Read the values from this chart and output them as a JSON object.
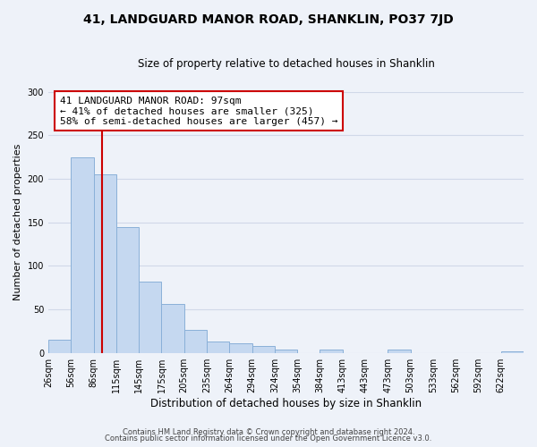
{
  "title": "41, LANDGUARD MANOR ROAD, SHANKLIN, PO37 7JD",
  "subtitle": "Size of property relative to detached houses in Shanklin",
  "xlabel": "Distribution of detached houses by size in Shanklin",
  "ylabel": "Number of detached properties",
  "bar_labels": [
    "26sqm",
    "56sqm",
    "86sqm",
    "115sqm",
    "145sqm",
    "175sqm",
    "205sqm",
    "235sqm",
    "264sqm",
    "294sqm",
    "324sqm",
    "354sqm",
    "384sqm",
    "413sqm",
    "443sqm",
    "473sqm",
    "503sqm",
    "533sqm",
    "562sqm",
    "592sqm",
    "622sqm"
  ],
  "bar_heights": [
    15,
    225,
    205,
    145,
    82,
    56,
    26,
    13,
    11,
    8,
    4,
    0,
    4,
    0,
    0,
    4,
    0,
    0,
    0,
    0,
    2
  ],
  "bar_color": "#c5d8f0",
  "bar_edge_color": "#8ab0d8",
  "property_line_x": 2,
  "ylim": [
    0,
    300
  ],
  "yticks": [
    0,
    50,
    100,
    150,
    200,
    250,
    300
  ],
  "annotation_title": "41 LANDGUARD MANOR ROAD: 97sqm",
  "annotation_line1": "← 41% of detached houses are smaller (325)",
  "annotation_line2": "58% of semi-detached houses are larger (457) →",
  "annotation_box_color": "#ffffff",
  "annotation_box_edge": "#cc0000",
  "vline_color": "#cc0000",
  "footer1": "Contains HM Land Registry data © Crown copyright and database right 2024.",
  "footer2": "Contains public sector information licensed under the Open Government Licence v3.0.",
  "background_color": "#eef2f9",
  "grid_color": "#d0d8e8",
  "title_fontsize": 10,
  "subtitle_fontsize": 8.5,
  "ylabel_fontsize": 8,
  "xlabel_fontsize": 8.5,
  "tick_fontsize": 7,
  "footer_fontsize": 6
}
